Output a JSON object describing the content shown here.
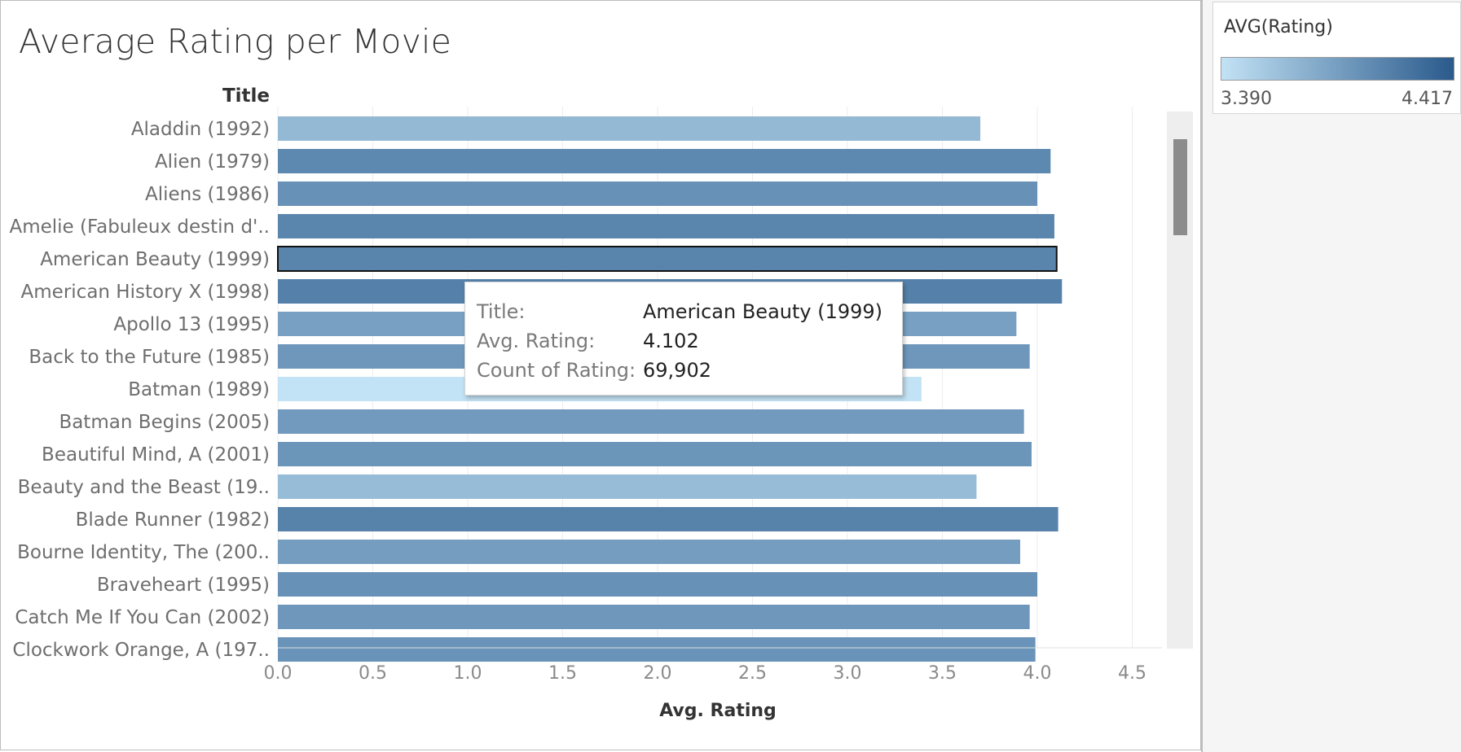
{
  "chart_data": {
    "type": "bar",
    "orientation": "horizontal",
    "title": "Average Rating per Movie",
    "ylabel": "Title",
    "xlabel": "Avg. Rating",
    "xlim": [
      0,
      4.6
    ],
    "xticks": [
      "0.0",
      "0.5",
      "1.0",
      "1.5",
      "2.0",
      "2.5",
      "3.0",
      "3.5",
      "4.0",
      "4.5"
    ],
    "grid": true,
    "categories": [
      "Aladdin (1992)",
      "Alien (1979)",
      "Aliens (1986)",
      "Amelie (Fabuleux destin d'..",
      "American Beauty (1999)",
      "American History X (1998)",
      "Apollo 13 (1995)",
      "Back to the Future (1985)",
      "Batman (1989)",
      "Batman Begins (2005)",
      "Beautiful Mind, A (2001)",
      "Beauty and the Beast (19..",
      "Blade Runner (1982)",
      "Bourne Identity, The (200..",
      "Braveheart (1995)",
      "Catch Me If You Can (2002)",
      "Clockwork Orange, A (197.."
    ],
    "values": [
      3.7,
      4.07,
      4.0,
      4.09,
      4.102,
      4.13,
      3.89,
      3.96,
      3.39,
      3.93,
      3.97,
      3.68,
      4.11,
      3.91,
      4.0,
      3.96,
      3.99
    ],
    "selected_index": 4,
    "color_legend": {
      "title": "AVG(Rating)",
      "min_label": "3.390",
      "max_label": "4.417",
      "min": 3.39,
      "max": 4.417,
      "color_low": "#c2e2f5",
      "color_high": "#2a5a8c"
    },
    "tooltip": {
      "rows": [
        {
          "key": "Title:",
          "value": "American Beauty (1999)"
        },
        {
          "key": "Avg. Rating:",
          "value": "4.102"
        },
        {
          "key": "Count of Rating:",
          "value": "69,902"
        }
      ]
    }
  }
}
